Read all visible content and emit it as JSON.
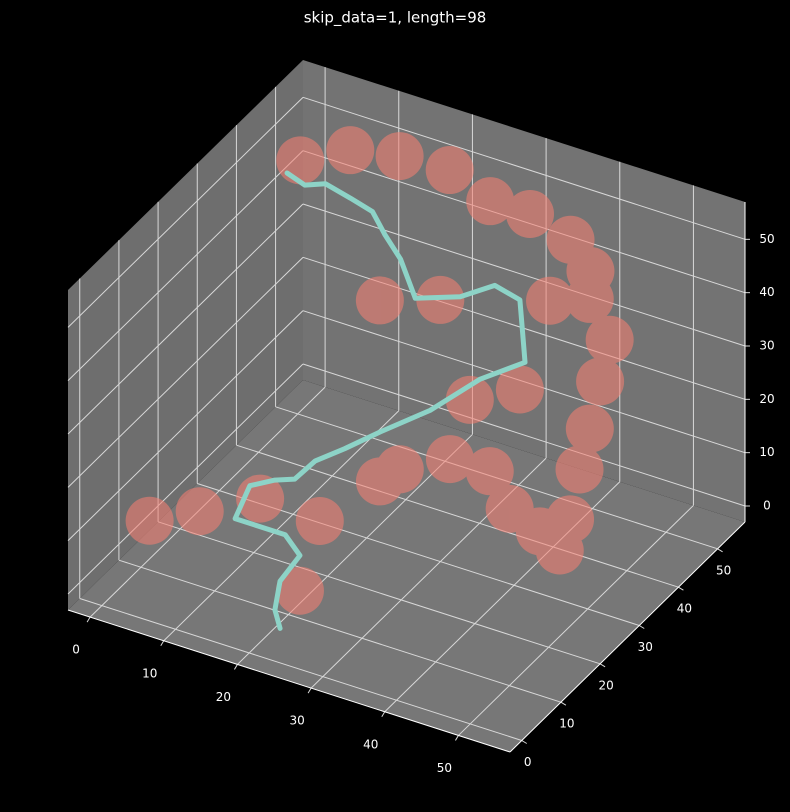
{
  "chart_data": {
    "type": "scatter3d",
    "title": "skip_data=1, length=98",
    "xlim": [
      -3,
      57
    ],
    "ylim": [
      -3,
      57
    ],
    "zlim": [
      -3,
      57
    ],
    "xticks": [
      0,
      10,
      20,
      30,
      40,
      50
    ],
    "yticks": [
      0,
      10,
      20,
      30,
      40,
      50
    ],
    "zticks": [
      0,
      10,
      20,
      30,
      40,
      50
    ],
    "grid": true,
    "series": [
      {
        "type": "scatter",
        "color": "#fa8072",
        "x": [
          6.2,
          9.8,
          14.9,
          21.7,
          27.2,
          32.6,
          38.1,
          42.4,
          43.9,
          48.2,
          46.9,
          47.1,
          47.3,
          49.2,
          49.4,
          46.7,
          42.6,
          38.3,
          31.3,
          22.9,
          21.8,
          18.6,
          28.4,
          39.2,
          34.0,
          8.5,
          1.7,
          16.7,
          24.8,
          23.7,
          41.7
        ],
        "y": [
          39.0,
          45.0,
          48.0,
          48.0,
          48.0,
          48.0,
          48.0,
          45.0,
          42.0,
          39.0,
          39.0,
          36.0,
          33.0,
          27.0,
          24.0,
          24.0,
          24.0,
          27.0,
          30.0,
          33.0,
          30.0,
          36.0,
          33.0,
          33.0,
          30.0,
          9.0,
          9.0,
          9.0,
          9.0,
          6.0,
          36.0
        ],
        "z": [
          55.2,
          54.4,
          53.4,
          53.8,
          50.4,
          50.4,
          48.0,
          46.2,
          43.8,
          40.2,
          31.8,
          25.2,
          19.8,
          15.6,
          12.0,
          14.4,
          16.8,
          19.8,
          16.8,
          9.0,
          8.4,
          36.6,
          43.2,
          31.2,
          29.1,
          12.0,
          7.2,
          18.0,
          17.4,
          6.0,
          46.8
        ]
      },
      {
        "type": "line",
        "color": "#8dd3c7",
        "x": [
          6.0,
          8.4,
          11.2,
          14.6,
          17.6,
          19.3,
          21.4,
          25.0,
          31.1,
          35.8,
          39.2,
          39.5,
          39.9,
          35.4,
          30.2,
          25.0,
          21.8,
          19.4,
          18.2,
          17.1,
          15.3,
          14.9,
          21.7,
          23.7,
          21.0,
          20.3,
          22.6
        ],
        "y": [
          36.0,
          36.0,
          36.0,
          36.0,
          36.0,
          36.0,
          36.0,
          33.0,
          33.0,
          33.0,
          33.0,
          33.0,
          33.0,
          30.0,
          27.0,
          24.0,
          21.0,
          18.0,
          15.0,
          12.0,
          9.0,
          6.0,
          6.0,
          6.0,
          6.0,
          6.0,
          3.0
        ],
        "z": [
          54.9,
          53.7,
          55.2,
          54.0,
          52.8,
          49.2,
          45.6,
          42.0,
          45.0,
          49.2,
          48.0,
          43.2,
          36.6,
          33.6,
          27.6,
          23.4,
          21.0,
          19.8,
          18.0,
          19.5,
          19.8,
          15.6,
          15.6,
          12.6,
          6.6,
          0.9,
          0.6
        ]
      }
    ]
  }
}
